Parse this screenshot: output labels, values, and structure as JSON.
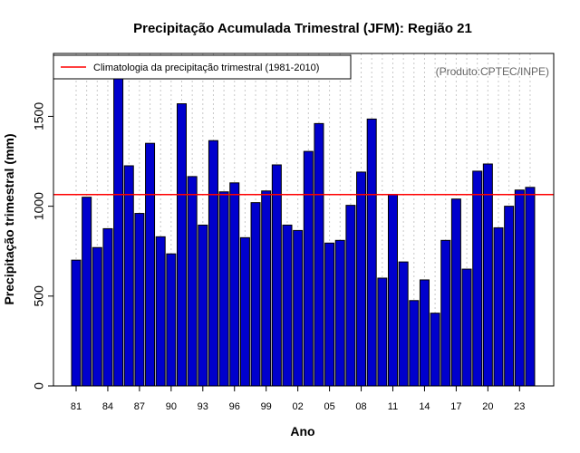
{
  "chart_data": {
    "type": "bar",
    "title": "Precipitação Acumulada Trimestral (JFM): Região 21",
    "xlabel": "Ano",
    "ylabel": "Precipitação trimestral (mm)",
    "ylim": [
      0,
      1850
    ],
    "yticks": [
      0,
      500,
      1000,
      1500
    ],
    "ytick_labels": [
      "0",
      "500",
      "1000",
      "1500"
    ],
    "categories": [
      "1981",
      "1982",
      "1983",
      "1984",
      "1985",
      "1986",
      "1987",
      "1988",
      "1989",
      "1990",
      "1991",
      "1992",
      "1993",
      "1994",
      "1995",
      "1996",
      "1997",
      "1998",
      "1999",
      "2000",
      "2001",
      "2002",
      "2003",
      "2004",
      "2005",
      "2006",
      "2007",
      "2008",
      "2009",
      "2010",
      "2011",
      "2012",
      "2013",
      "2014",
      "2015",
      "2016",
      "2017",
      "2018",
      "2019",
      "2020",
      "2021",
      "2022",
      "2023",
      "2024"
    ],
    "xtick_labels": [
      "81",
      "84",
      "87",
      "90",
      "93",
      "96",
      "99",
      "02",
      "05",
      "08",
      "11",
      "14",
      "17",
      "20",
      "23"
    ],
    "values": [
      700,
      1050,
      770,
      875,
      1750,
      1225,
      960,
      1350,
      830,
      735,
      1570,
      1165,
      895,
      1365,
      1080,
      1130,
      825,
      1020,
      1085,
      1230,
      895,
      865,
      1305,
      1460,
      795,
      810,
      1005,
      1190,
      1485,
      600,
      1065,
      690,
      475,
      590,
      405,
      810,
      1040,
      650,
      1195,
      1235,
      880,
      1000,
      1090,
      1105
    ],
    "bar_color": "#0000CD",
    "bar_edge_color": "#000000",
    "grid": "vertical dotted",
    "reference_line": {
      "value": 1065,
      "color": "#FF0000",
      "label": "Climatologia da precipitação trimestral (1981-2010)"
    },
    "legend": {
      "position": "top-left",
      "entries": [
        "Climatologia da precipitação trimestral (1981-2010)"
      ]
    },
    "annotation": "(Produto:CPTEC/INPE)"
  }
}
